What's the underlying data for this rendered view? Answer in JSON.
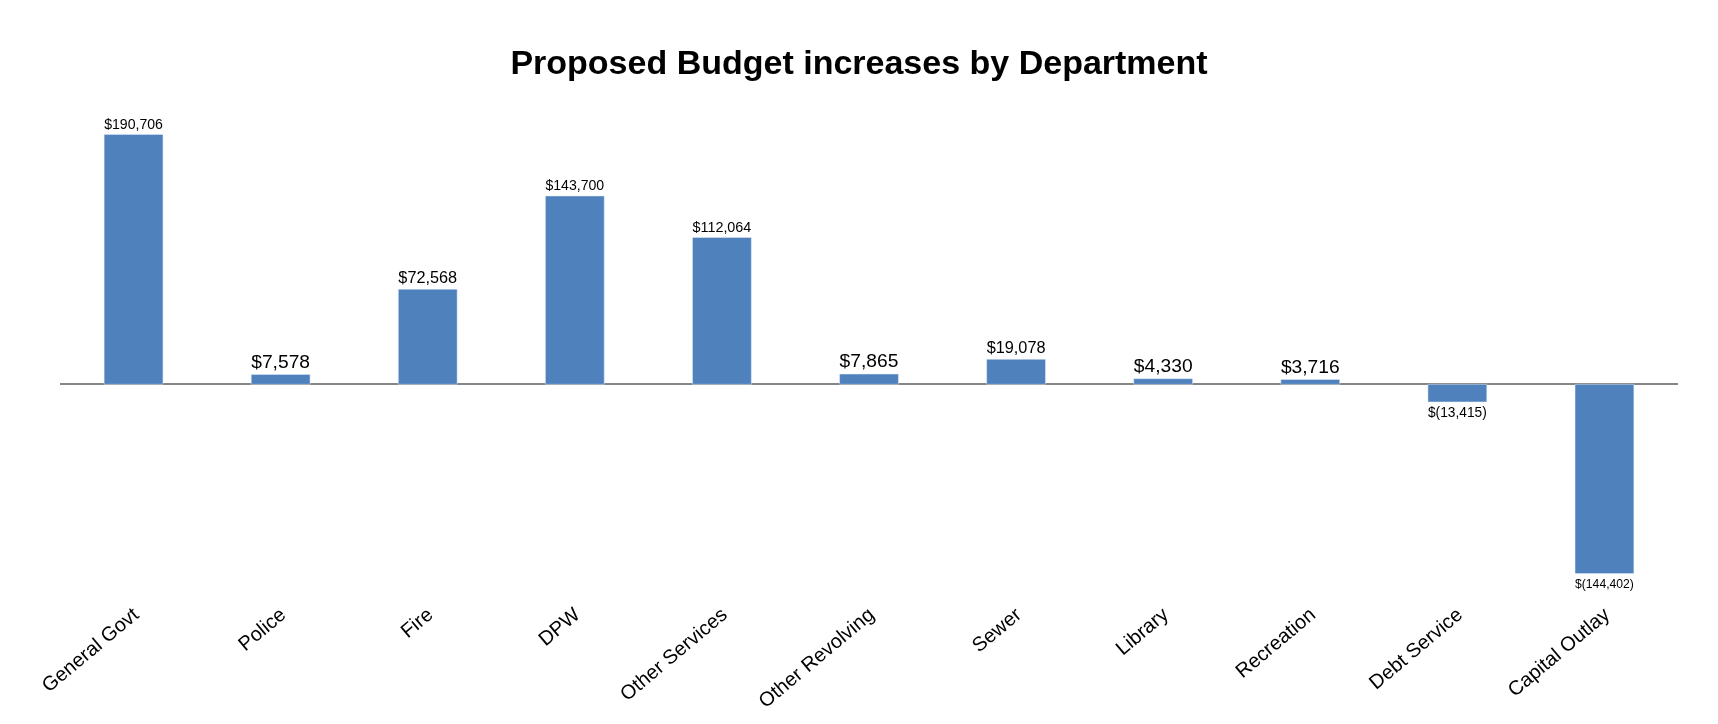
{
  "chart_data": {
    "type": "bar",
    "title": "Proposed Budget increases by Department",
    "categories": [
      "General Govt",
      "Police",
      "Fire",
      "DPW",
      "Other Services",
      "Other Revolving",
      "Sewer",
      "Library",
      "Recreation",
      "Debt Service",
      "Capital Outlay"
    ],
    "values": [
      190706,
      7578,
      72568,
      143700,
      112064,
      7865,
      19078,
      4330,
      3716,
      -13415,
      -144402
    ],
    "value_labels": [
      "$190,706",
      "$7,578",
      "$72,568",
      "$143,700",
      "$112,064",
      "$7,865",
      "$19,078",
      "$4,330",
      "$3,716",
      "$(13,415)",
      "$(144,402)"
    ],
    "color": "#4f81bd"
  }
}
